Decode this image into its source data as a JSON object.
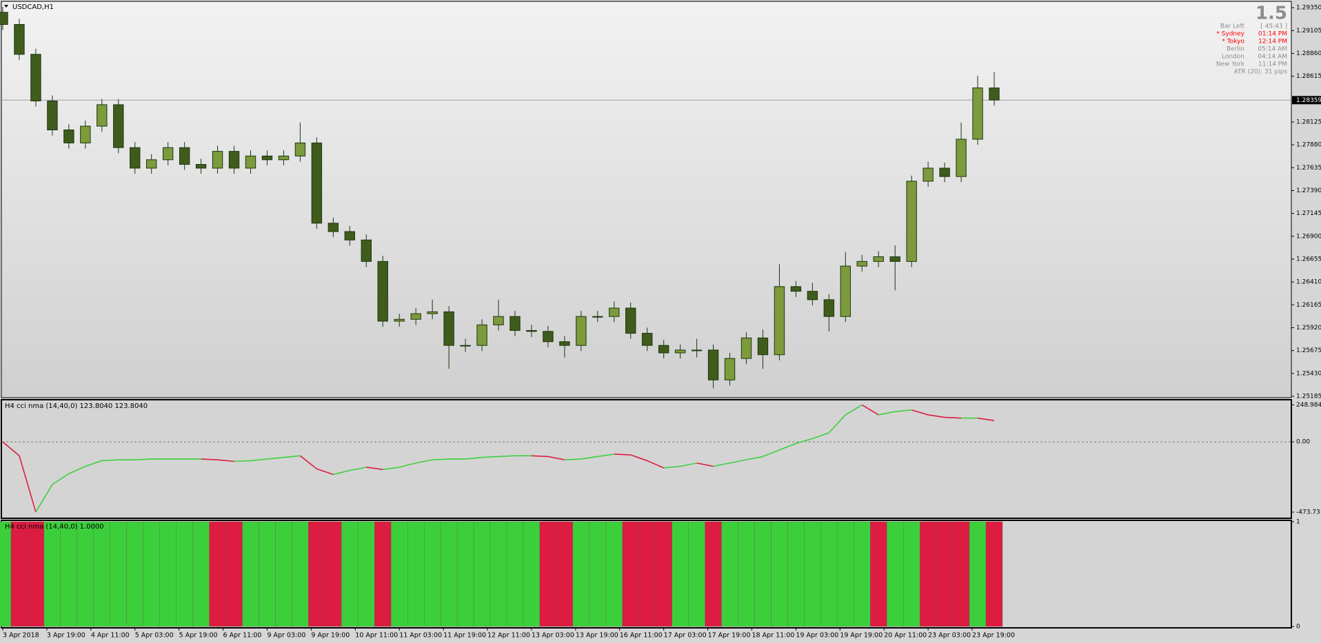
{
  "chart_data": [
    {
      "type": "candlestick",
      "title": "USDCAD,H1",
      "x": [
        0,
        6,
        12,
        18,
        24,
        30,
        36,
        42,
        48,
        54,
        60,
        66,
        72,
        78,
        84,
        90,
        96,
        102,
        108,
        114,
        120,
        126,
        132,
        138,
        144,
        150,
        156,
        162,
        168,
        174,
        180,
        186,
        192,
        198,
        204,
        210,
        216,
        222,
        228,
        234,
        240,
        246,
        252,
        258,
        264,
        270,
        276,
        282,
        288,
        294,
        300,
        306,
        312,
        318,
        324,
        330,
        336,
        342,
        348,
        354,
        360
      ],
      "xlim": [
        0,
        363
      ],
      "xticks": [
        {
          "value": 0,
          "label": "3 Apr 2018"
        },
        {
          "value": 16,
          "label": "3 Apr 19:00"
        },
        {
          "value": 32,
          "label": "4 Apr 11:00"
        },
        {
          "value": 48,
          "label": "5 Apr 03:00"
        },
        {
          "value": 64,
          "label": "5 Apr 19:00"
        },
        {
          "value": 80,
          "label": "6 Apr 11:00"
        },
        {
          "value": 96,
          "label": "9 Apr 03:00"
        },
        {
          "value": 112,
          "label": "9 Apr 19:00"
        },
        {
          "value": 128,
          "label": "10 Apr 11:00"
        },
        {
          "value": 144,
          "label": "11 Apr 03:00"
        },
        {
          "value": 160,
          "label": "11 Apr 19:00"
        },
        {
          "value": 176,
          "label": "12 Apr 11:00"
        },
        {
          "value": 192,
          "label": "13 Apr 03:00"
        },
        {
          "value": 208,
          "label": "13 Apr 19:00"
        },
        {
          "value": 224,
          "label": "16 Apr 11:00"
        },
        {
          "value": 240,
          "label": "17 Apr 03:00"
        },
        {
          "value": 256,
          "label": "17 Apr 19:00"
        },
        {
          "value": 272,
          "label": "18 Apr 11:00"
        },
        {
          "value": 288,
          "label": "19 Apr 03:00"
        },
        {
          "value": 304,
          "label": "19 Apr 19:00"
        },
        {
          "value": 320,
          "label": "20 Apr 11:00"
        },
        {
          "value": 336,
          "label": "23 Apr 03:00"
        },
        {
          "value": 352,
          "label": "23 Apr 19:00"
        }
      ],
      "open": [
        1.293,
        1.2917,
        1.2885,
        1.2835,
        1.2804,
        1.279,
        1.2808,
        1.2831,
        1.2785,
        1.2763,
        1.2772,
        1.2785,
        1.2767,
        1.2763,
        1.2781,
        1.2763,
        1.2776,
        1.2772,
        1.2776,
        1.279,
        1.2704,
        1.2695,
        1.2686,
        1.2663,
        1.2599,
        1.2601,
        1.2607,
        1.2609,
        1.2573,
        1.2573,
        1.2595,
        1.2604,
        1.2589,
        1.2588,
        1.2577,
        1.2573,
        1.2604,
        1.2604,
        1.2613,
        1.2586,
        1.2573,
        1.2565,
        1.2568,
        1.2568,
        1.2536,
        1.2559,
        1.2581,
        1.2563,
        1.2636,
        1.2631,
        1.2622,
        1.2604,
        1.2658,
        1.2663,
        1.2668,
        1.2663,
        1.2749,
        1.2763,
        1.2754,
        1.2794,
        1.2849
      ],
      "high": [
        1.2936,
        1.2923,
        1.2891,
        1.2841,
        1.281,
        1.2814,
        1.2837,
        1.2837,
        1.2791,
        1.2778,
        1.2791,
        1.2791,
        1.2773,
        1.2787,
        1.2787,
        1.2782,
        1.2782,
        1.2782,
        1.2812,
        1.2796,
        1.271,
        1.2701,
        1.2692,
        1.2669,
        1.2607,
        1.2613,
        1.2622,
        1.2615,
        1.258,
        1.2601,
        1.2622,
        1.261,
        1.2595,
        1.2594,
        1.2583,
        1.261,
        1.261,
        1.262,
        1.2619,
        1.2592,
        1.2579,
        1.2574,
        1.258,
        1.2574,
        1.2565,
        1.2587,
        1.259,
        1.266,
        1.2642,
        1.264,
        1.2628,
        1.2673,
        1.267,
        1.2674,
        1.268,
        1.2755,
        1.277,
        1.2769,
        1.2812,
        1.2862,
        1.2866
      ],
      "low": [
        1.2911,
        1.2879,
        1.2829,
        1.2798,
        1.2784,
        1.2784,
        1.2802,
        1.2779,
        1.2757,
        1.2757,
        1.2766,
        1.2761,
        1.2757,
        1.2757,
        1.2757,
        1.2757,
        1.2766,
        1.2766,
        1.277,
        1.2698,
        1.2689,
        1.268,
        1.2657,
        1.2593,
        1.2593,
        1.2595,
        1.2601,
        1.2548,
        1.2566,
        1.2567,
        1.2589,
        1.2583,
        1.2582,
        1.2571,
        1.256,
        1.2567,
        1.2598,
        1.2598,
        1.258,
        1.2567,
        1.2559,
        1.2559,
        1.256,
        1.2527,
        1.253,
        1.2553,
        1.2548,
        1.2557,
        1.2625,
        1.2616,
        1.2588,
        1.2598,
        1.2652,
        1.2657,
        1.2632,
        1.2657,
        1.2743,
        1.2748,
        1.2748,
        1.2788,
        1.283
      ],
      "close": [
        1.2917,
        1.2885,
        1.2835,
        1.2804,
        1.279,
        1.2808,
        1.2831,
        1.2785,
        1.2763,
        1.2772,
        1.2785,
        1.2767,
        1.2763,
        1.2781,
        1.2763,
        1.2776,
        1.2772,
        1.2776,
        1.279,
        1.2704,
        1.2695,
        1.2686,
        1.2663,
        1.2599,
        1.2601,
        1.2607,
        1.2609,
        1.2573,
        1.2573,
        1.2595,
        1.2604,
        1.2589,
        1.2588,
        1.2577,
        1.2573,
        1.2604,
        1.2604,
        1.2613,
        1.2586,
        1.2573,
        1.2565,
        1.2568,
        1.2568,
        1.2536,
        1.2559,
        1.2581,
        1.2563,
        1.2636,
        1.2631,
        1.2622,
        1.2604,
        1.2658,
        1.2663,
        1.2668,
        1.2663,
        1.2749,
        1.2763,
        1.2754,
        1.2794,
        1.2849,
        1.2836
      ],
      "ylim": [
        1.2517,
        1.2941
      ],
      "yticks": [
        {
          "value": 1.2935,
          "label": "1.29350"
        },
        1.29105,
        {
          "value": 1.2886,
          "label": "1.28860"
        },
        1.28615,
        1.28125,
        {
          "value": 1.2788,
          "label": "1.27880"
        },
        1.27635,
        {
          "value": 1.2739,
          "label": "1.27390"
        },
        1.27145,
        {
          "value": 1.269,
          "label": "1.26900"
        },
        1.26655,
        {
          "value": 1.2641,
          "label": "1.26410"
        },
        1.26165,
        {
          "value": 1.2592,
          "label": "1.25920"
        },
        1.25675,
        {
          "value": 1.2543,
          "label": "1.25430"
        },
        1.25185
      ],
      "current_price": 1.28359,
      "up_color": "#7d9a3c",
      "down_color": "#3f5c1c",
      "edge_color": "#1c3510"
    },
    {
      "type": "line",
      "title": "H4 cci nma (14,40,0) 123.8040 123.8040",
      "values": [
        0,
        -94,
        -473.7334,
        -287,
        -215,
        -165,
        -127,
        -121,
        -121,
        -116,
        -116,
        -116,
        -116,
        -121,
        -132,
        -127,
        -116,
        -105,
        -94,
        -182,
        -220,
        -193,
        -171,
        -187,
        -171,
        -143,
        -121,
        -116,
        -116,
        -105,
        -99,
        -94,
        -94,
        -99,
        -121,
        -116,
        -99,
        -83,
        -88,
        -127,
        -176,
        -165,
        -143,
        -165,
        -143,
        -121,
        -99,
        -55,
        -11,
        22,
        61,
        182,
        248.9844,
        182,
        204,
        215,
        182,
        165,
        160,
        160,
        143
      ],
      "ylim": [
        -506,
        270
      ],
      "yticks": [
        248.9844,
        {
          "value": 0,
          "label": "0.00"
        },
        -473.7334
      ],
      "up_color": "#3ccf3c",
      "down_color": "#dc1c40"
    },
    {
      "type": "bar",
      "title": "H4 cci nma (14,40,0) 1.0000",
      "values": [
        1,
        1,
        1,
        1,
        1,
        1,
        1,
        1,
        1,
        1,
        1,
        1,
        1,
        1,
        1,
        1,
        1,
        1,
        1,
        1,
        1,
        1,
        1,
        1,
        1,
        1,
        1,
        1,
        1,
        1,
        1,
        1,
        1,
        1,
        1,
        1,
        1,
        1,
        1,
        1,
        1,
        1,
        1,
        1,
        1,
        1,
        1,
        1,
        1,
        1,
        1,
        1,
        1,
        1,
        1,
        1,
        1,
        1,
        1,
        1,
        1
      ],
      "ylim": [
        0,
        1
      ],
      "yticks": [
        0,
        1
      ],
      "up_color": "#3ccf3c",
      "down_color": "#dc1c40"
    }
  ],
  "info_panel": {
    "spread": "1.5",
    "rows": [
      {
        "label": "Bar Left",
        "value": "[ 45:43 ]",
        "color": "#8c8c8c"
      },
      {
        "label": "* Sydney",
        "value": "01:14 PM",
        "color": "#ff0000"
      },
      {
        "label": "* Tokyo",
        "value": "12:14 PM",
        "color": "#ff0000"
      },
      {
        "label": "Berlin",
        "value": "05:14 AM",
        "color": "#8c8c8c"
      },
      {
        "label": "London",
        "value": "04:14 AM",
        "color": "#8c8c8c"
      },
      {
        "label": "New York",
        "value": "11:14 PM",
        "color": "#8c8c8c"
      }
    ],
    "atr": "ATR (20): 31 pips"
  }
}
